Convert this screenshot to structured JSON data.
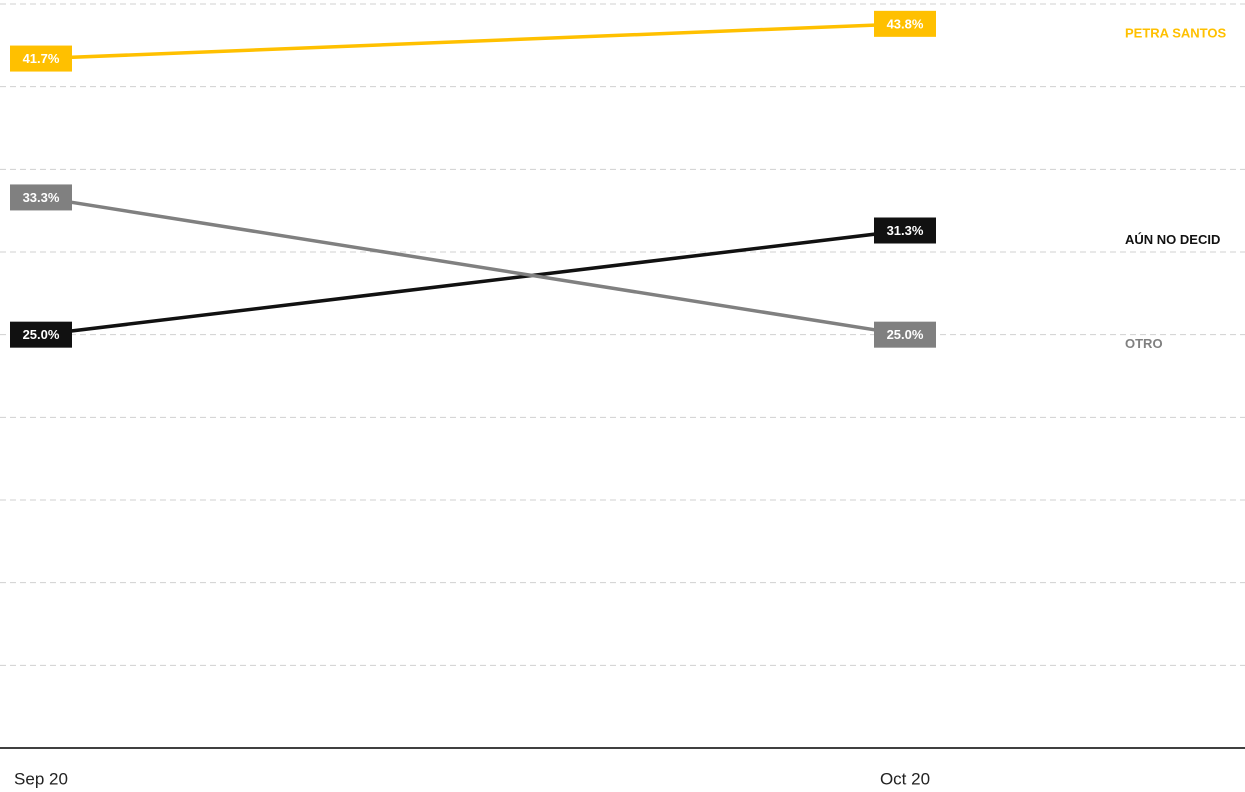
{
  "chart_data": {
    "type": "line",
    "categories": [
      "Sep 20",
      "Oct 20"
    ],
    "series": [
      {
        "name": "PETRA SANTOS",
        "color": "#ffc000",
        "values": [
          41.7,
          43.8
        ],
        "value_labels": [
          "41.7%",
          "43.8%"
        ]
      },
      {
        "name": "AÚN NO DECID",
        "color": "#111111",
        "values": [
          25.0,
          31.3
        ],
        "value_labels": [
          "25.0%",
          "31.3%"
        ]
      },
      {
        "name": "OTRO",
        "color": "#808080",
        "values": [
          33.3,
          25.0
        ],
        "value_labels": [
          "33.3%",
          "25.0%"
        ]
      }
    ],
    "ylim": [
      0,
      45
    ],
    "yticks": [
      0,
      5,
      10,
      15,
      20,
      25,
      30,
      35,
      40,
      45
    ],
    "grid": true,
    "legend": "right"
  }
}
